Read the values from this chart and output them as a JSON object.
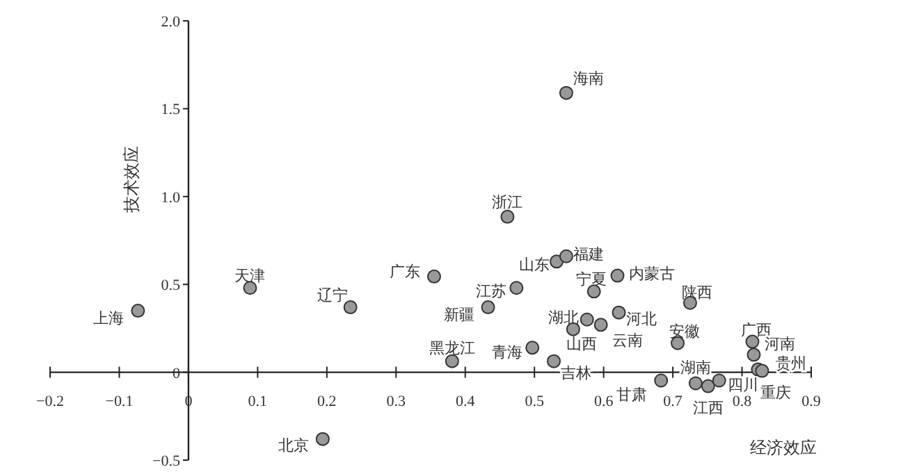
{
  "chart_data": {
    "type": "scatter",
    "xlabel": "经济效应",
    "ylabel": "技术效应",
    "xlim": [
      -0.2,
      0.9
    ],
    "ylim": [
      -0.5,
      2.0
    ],
    "xticks": [
      -0.2,
      -0.1,
      0,
      0.1,
      0.2,
      0.3,
      0.4,
      0.5,
      0.6,
      0.7,
      0.8,
      0.9
    ],
    "yticks": [
      -0.5,
      0,
      0.5,
      {
        "value": 1,
        "label": "1.0"
      },
      1.5,
      {
        "value": 2,
        "label": "2.0"
      }
    ],
    "grid": false,
    "marker": "circle",
    "series": [
      {
        "color": "#999999",
        "x": [
          -0.073,
          0.089,
          0.234,
          0.194,
          0.355,
          0.381,
          0.461,
          0.546,
          0.433,
          0.474,
          0.532,
          0.546,
          0.586,
          0.62,
          0.576,
          0.622,
          0.596,
          0.556,
          0.497,
          0.528,
          0.725,
          0.707,
          0.815,
          0.817,
          0.823,
          0.829,
          0.683,
          0.733,
          0.751,
          0.767
        ],
        "values": [
          0.35,
          0.48,
          0.37,
          -0.38,
          0.545,
          0.063,
          0.885,
          1.59,
          0.37,
          0.48,
          0.63,
          0.66,
          0.46,
          0.55,
          0.3,
          0.34,
          0.27,
          0.245,
          0.14,
          0.063,
          0.395,
          0.166,
          0.174,
          0.1,
          0.016,
          0.008,
          -0.047,
          -0.063,
          -0.079,
          -0.047
        ]
      }
    ],
    "annotations": [
      {
        "text": "上海",
        "x": -0.073,
        "y": 0.35
      },
      {
        "text": "天津",
        "x": 0.089,
        "y": 0.48
      },
      {
        "text": "辽宁",
        "x": 0.234,
        "y": 0.37
      },
      {
        "text": "北京",
        "x": 0.194,
        "y": -0.38
      },
      {
        "text": "广东",
        "x": 0.355,
        "y": 0.545
      },
      {
        "text": "黑龙江",
        "x": 0.381,
        "y": 0.063
      },
      {
        "text": "浙江",
        "x": 0.461,
        "y": 0.885
      },
      {
        "text": "海南",
        "x": 0.546,
        "y": 1.59
      },
      {
        "text": "新疆",
        "x": 0.433,
        "y": 0.37
      },
      {
        "text": "江苏",
        "x": 0.474,
        "y": 0.48
      },
      {
        "text": "山东",
        "x": 0.532,
        "y": 0.63
      },
      {
        "text": "福建",
        "x": 0.546,
        "y": 0.66
      },
      {
        "text": "宁夏",
        "x": 0.586,
        "y": 0.46
      },
      {
        "text": "内蒙古",
        "x": 0.62,
        "y": 0.55
      },
      {
        "text": "湖北",
        "x": 0.576,
        "y": 0.3
      },
      {
        "text": "河北",
        "x": 0.622,
        "y": 0.34
      },
      {
        "text": "云南",
        "x": 0.596,
        "y": 0.27
      },
      {
        "text": "山西",
        "x": 0.556,
        "y": 0.245
      },
      {
        "text": "青海",
        "x": 0.497,
        "y": 0.14
      },
      {
        "text": "吉林",
        "x": 0.528,
        "y": 0.063
      },
      {
        "text": "陕西",
        "x": 0.725,
        "y": 0.395
      },
      {
        "text": "安徽",
        "x": 0.707,
        "y": 0.166
      },
      {
        "text": "广西",
        "x": 0.815,
        "y": 0.174
      },
      {
        "text": "河南",
        "x": 0.817,
        "y": 0.1
      },
      {
        "text": "重庆",
        "x": 0.823,
        "y": 0.016
      },
      {
        "text": "贵州",
        "x": 0.829,
        "y": 0.008
      },
      {
        "text": "甘肃",
        "x": 0.683,
        "y": -0.047
      },
      {
        "text": "湖南",
        "x": 0.733,
        "y": -0.063
      },
      {
        "text": "江西",
        "x": 0.751,
        "y": -0.079
      },
      {
        "text": "四川",
        "x": 0.767,
        "y": -0.047
      }
    ]
  }
}
